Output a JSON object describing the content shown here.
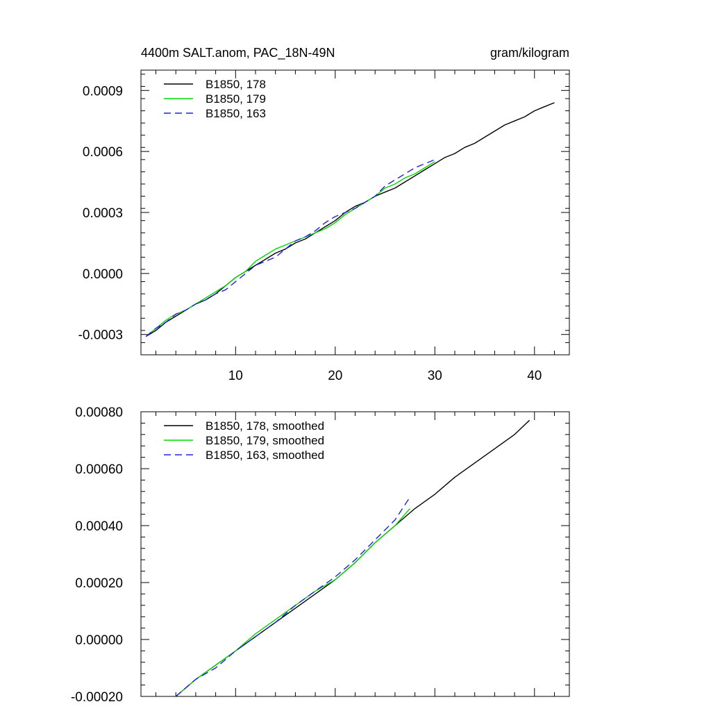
{
  "chart_data": [
    {
      "type": "line",
      "title_left": "4400m SALT.anom, PAC_18N-49N",
      "title_right": "gram/kilogram",
      "xlim": [
        0.5,
        43.5
      ],
      "ylim": [
        -0.0004,
        0.001
      ],
      "xticks": [
        10,
        20,
        30,
        40
      ],
      "xticklabels": [
        "10",
        "20",
        "30",
        "40"
      ],
      "yticks": [
        -0.0003,
        0.0,
        0.0003,
        0.0006,
        0.0009
      ],
      "yticklabels": [
        "-0.0003",
        "0.0000",
        "0.0003",
        "0.0006",
        "0.0009"
      ],
      "legend_position": "top-left",
      "series": [
        {
          "name": "B1850, 178",
          "color": "#000000",
          "dash": "solid",
          "x": [
            1,
            2,
            3,
            4,
            5,
            6,
            7,
            8,
            9,
            10,
            11,
            12,
            13,
            14,
            15,
            16,
            17,
            18,
            19,
            20,
            21,
            22,
            23,
            24,
            25,
            26,
            27,
            28,
            29,
            30,
            31,
            32,
            33,
            34,
            35,
            36,
            37,
            38,
            39,
            40,
            41,
            42
          ],
          "y": [
            -0.00031,
            -0.00028,
            -0.00024,
            -0.00021,
            -0.00018,
            -0.00015,
            -0.00013,
            -0.0001,
            -6e-05,
            -2e-05,
            1e-05,
            4e-05,
            7e-05,
            0.0001,
            0.00012,
            0.00015,
            0.00017,
            0.0002,
            0.00023,
            0.00026,
            0.0003,
            0.00033,
            0.00035,
            0.00038,
            0.0004,
            0.00042,
            0.00045,
            0.00048,
            0.00051,
            0.00054,
            0.00057,
            0.00059,
            0.00062,
            0.00064,
            0.00067,
            0.0007,
            0.00073,
            0.00075,
            0.00077,
            0.0008,
            0.00082,
            0.00084
          ]
        },
        {
          "name": "B1850, 179",
          "color": "#00d800",
          "dash": "solid",
          "x": [
            1,
            2,
            3,
            4,
            5,
            6,
            7,
            8,
            9,
            10,
            11,
            12,
            13,
            14,
            15,
            16,
            17,
            18,
            19,
            20,
            21,
            22,
            23,
            24,
            25,
            26,
            27,
            28,
            29,
            30
          ],
          "y": [
            -0.00031,
            -0.00027,
            -0.00023,
            -0.0002,
            -0.00018,
            -0.00015,
            -0.00012,
            -9e-05,
            -6e-05,
            -2e-05,
            1e-05,
            6e-05,
            9e-05,
            0.00012,
            0.00014,
            0.00016,
            0.00018,
            0.0002,
            0.00022,
            0.00025,
            0.00029,
            0.00032,
            0.00035,
            0.00038,
            0.00042,
            0.00044,
            0.00047,
            0.00049,
            0.00052,
            0.00055
          ]
        },
        {
          "name": "B1850, 163",
          "color": "#2020e0",
          "dash": "dashed",
          "x": [
            1,
            2,
            3,
            4,
            5,
            6,
            7,
            8,
            9,
            10,
            11,
            12,
            13,
            14,
            15,
            16,
            17,
            18,
            19,
            20,
            21,
            22,
            23,
            24,
            25,
            26,
            27,
            28,
            29,
            30
          ],
          "y": [
            -0.00031,
            -0.00027,
            -0.00024,
            -0.0002,
            -0.00018,
            -0.00015,
            -0.00013,
            -0.0001,
            -8e-05,
            -4e-05,
            0.0,
            4e-05,
            6e-05,
            8e-05,
            0.00012,
            0.00016,
            0.00018,
            0.00021,
            0.00025,
            0.00028,
            0.0003,
            0.00032,
            0.00035,
            0.00038,
            0.00043,
            0.00046,
            0.00049,
            0.00052,
            0.00054,
            0.00056
          ]
        }
      ]
    },
    {
      "type": "line",
      "xlim": [
        0.5,
        43.5
      ],
      "ylim": [
        -0.0002,
        0.0008
      ],
      "xticks": [
        10,
        20,
        30,
        40
      ],
      "xticklabels": [],
      "yticks": [
        -0.0002,
        0.0,
        0.0002,
        0.0004,
        0.0006,
        0.0008
      ],
      "yticklabels": [
        "-0.00020",
        "0.00000",
        "0.00020",
        "0.00040",
        "0.00060",
        "0.00080"
      ],
      "legend_position": "top-left",
      "series": [
        {
          "name": "B1850, 178, smoothed",
          "color": "#000000",
          "dash": "solid",
          "x": [
            4,
            6,
            8,
            10,
            12,
            14,
            16,
            18,
            20,
            22,
            24,
            26,
            28,
            30,
            32,
            34,
            36,
            38,
            39.5
          ],
          "y": [
            -0.0002,
            -0.00014,
            -9e-05,
            -4e-05,
            1e-05,
            6e-05,
            0.00011,
            0.00016,
            0.00021,
            0.00027,
            0.00034,
            0.0004,
            0.00046,
            0.00051,
            0.00057,
            0.00062,
            0.00067,
            0.00072,
            0.00077
          ]
        },
        {
          "name": "B1850, 179, smoothed",
          "color": "#00d800",
          "dash": "solid",
          "x": [
            4,
            6,
            8,
            10,
            12,
            14,
            16,
            18,
            20,
            22,
            24,
            26,
            27.5
          ],
          "y": [
            -0.0002,
            -0.00014,
            -9e-05,
            -4e-05,
            2e-05,
            7e-05,
            0.00012,
            0.00017,
            0.00021,
            0.00027,
            0.00034,
            0.0004,
            0.00046
          ]
        },
        {
          "name": "B1850, 163, smoothed",
          "color": "#2020e0",
          "dash": "dashed",
          "x": [
            4,
            6,
            8,
            10,
            12,
            14,
            16,
            18,
            20,
            22,
            24,
            26,
            27.5
          ],
          "y": [
            -0.0002,
            -0.00014,
            -0.0001,
            -4e-05,
            1e-05,
            6e-05,
            0.00012,
            0.00017,
            0.00022,
            0.00028,
            0.00035,
            0.00042,
            0.0005
          ]
        }
      ]
    }
  ]
}
